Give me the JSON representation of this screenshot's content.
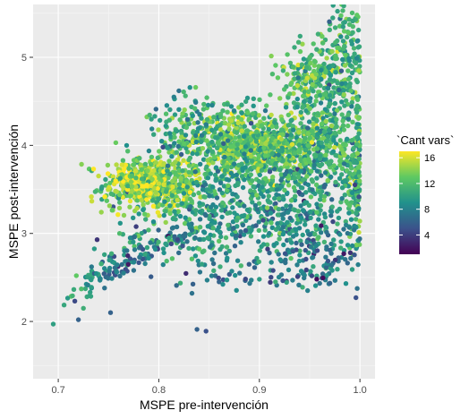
{
  "chart_data": {
    "type": "scatter",
    "xlabel": "MSPE pre-intervención",
    "ylabel": "MSPE post-intervención",
    "xlim": [
      0.675,
      1.015
    ],
    "ylim": [
      1.35,
      5.6
    ],
    "x_ticks": [
      0.7,
      0.8,
      0.9,
      1.0
    ],
    "x_tick_labels": [
      "0.7",
      "0.8",
      "0.9",
      "1.0"
    ],
    "y_ticks": [
      2,
      3,
      4,
      5
    ],
    "y_tick_labels": [
      "2",
      "3",
      "4",
      "5"
    ],
    "grid": true,
    "color": {
      "variable": "`Cant vars`",
      "range": [
        1,
        17
      ],
      "breaks": [
        4,
        8,
        12,
        16
      ],
      "break_labels": [
        "4",
        "8",
        "12",
        "16"
      ],
      "palette": [
        "#440154",
        "#3b528b",
        "#21918c",
        "#5ec962",
        "#fde725"
      ],
      "legend_position": "right"
    },
    "clusters": [
      {
        "x": 0.795,
        "y": 3.55,
        "sx": 0.025,
        "sy": 0.16,
        "n": 520,
        "c": 13.5
      },
      {
        "x": 0.78,
        "y": 3.6,
        "sx": 0.012,
        "sy": 0.08,
        "n": 160,
        "c": 15.5
      },
      {
        "x": 0.885,
        "y": 4.02,
        "sx": 0.035,
        "sy": 0.18,
        "n": 560,
        "c": 13
      },
      {
        "x": 0.94,
        "y": 3.95,
        "sx": 0.04,
        "sy": 0.2,
        "n": 420,
        "c": 12
      },
      {
        "x": 0.955,
        "y": 4.75,
        "sx": 0.02,
        "sy": 0.2,
        "n": 200,
        "c": 12
      },
      {
        "x": 0.985,
        "y": 5.05,
        "sx": 0.01,
        "sy": 0.25,
        "n": 120,
        "c": 11
      },
      {
        "x": 0.995,
        "y": 3.5,
        "sx": 0.005,
        "sy": 0.25,
        "n": 100,
        "c": 11
      },
      {
        "x": 0.93,
        "y": 3.2,
        "sx": 0.035,
        "sy": 0.25,
        "n": 240,
        "c": 9
      },
      {
        "x": 0.86,
        "y": 3.1,
        "sx": 0.03,
        "sy": 0.25,
        "n": 150,
        "c": 9
      },
      {
        "x": 0.84,
        "y": 4.25,
        "sx": 0.03,
        "sy": 0.2,
        "n": 110,
        "c": 10
      },
      {
        "x": 0.9,
        "y": 3.55,
        "sx": 0.045,
        "sy": 0.3,
        "n": 260,
        "c": 10
      },
      {
        "x": 0.96,
        "y": 2.8,
        "sx": 0.025,
        "sy": 0.18,
        "n": 90,
        "c": 8
      },
      {
        "x": 0.82,
        "y": 2.9,
        "sx": 0.03,
        "sy": 0.2,
        "n": 70,
        "c": 9
      },
      {
        "x": 0.97,
        "y": 4.3,
        "sx": 0.02,
        "sy": 0.25,
        "n": 160,
        "c": 11
      }
    ],
    "tails": [
      {
        "x0": 0.715,
        "y0": 2.25,
        "x1": 0.79,
        "y1": 3.15,
        "sx": 0.006,
        "sy": 0.06,
        "n": 60,
        "c": 9
      },
      {
        "x0": 0.74,
        "y0": 2.5,
        "x1": 0.84,
        "y1": 3.05,
        "sx": 0.006,
        "sy": 0.05,
        "n": 60,
        "c": 7
      },
      {
        "x0": 0.84,
        "y0": 2.5,
        "x1": 0.98,
        "y1": 2.5,
        "sx": 0.01,
        "sy": 0.06,
        "n": 40,
        "c": 7
      }
    ],
    "points": [
      {
        "x": 0.695,
        "y": 1.97,
        "c": 10
      },
      {
        "x": 0.72,
        "y": 2.02,
        "c": 6
      },
      {
        "x": 0.723,
        "y": 2.37,
        "c": 12
      },
      {
        "x": 0.718,
        "y": 2.52,
        "c": 13
      },
      {
        "x": 0.725,
        "y": 2.15,
        "c": 11
      },
      {
        "x": 0.752,
        "y": 2.1,
        "c": 6
      },
      {
        "x": 0.746,
        "y": 2.38,
        "c": 7
      },
      {
        "x": 0.838,
        "y": 1.91,
        "c": 6
      },
      {
        "x": 0.847,
        "y": 1.89,
        "c": 5
      },
      {
        "x": 0.996,
        "y": 2.27,
        "c": 5
      },
      {
        "x": 0.892,
        "y": 2.47,
        "c": 8
      },
      {
        "x": 0.833,
        "y": 2.32,
        "c": 7
      },
      {
        "x": 0.868,
        "y": 2.72,
        "c": 9
      },
      {
        "x": 0.916,
        "y": 2.45,
        "c": 11
      },
      {
        "x": 0.948,
        "y": 2.35,
        "c": 8
      },
      {
        "x": 0.972,
        "y": 2.64,
        "c": 7
      },
      {
        "x": 0.997,
        "y": 5.48,
        "c": 13
      },
      {
        "x": 0.993,
        "y": 5.35,
        "c": 12
      },
      {
        "x": 0.985,
        "y": 5.4,
        "c": 10
      },
      {
        "x": 0.82,
        "y": 4.62,
        "c": 7
      },
      {
        "x": 0.815,
        "y": 4.55,
        "c": 8
      },
      {
        "x": 0.796,
        "y": 4.33,
        "c": 10
      },
      {
        "x": 0.768,
        "y": 4.0,
        "c": 9
      },
      {
        "x": 0.761,
        "y": 3.0,
        "c": 12
      },
      {
        "x": 0.753,
        "y": 2.77,
        "c": 11
      },
      {
        "x": 0.765,
        "y": 2.55,
        "c": 8
      },
      {
        "x": 0.775,
        "y": 2.58,
        "c": 7
      },
      {
        "x": 0.79,
        "y": 2.72,
        "c": 9
      },
      {
        "x": 0.805,
        "y": 2.78,
        "c": 9
      },
      {
        "x": 0.81,
        "y": 2.95,
        "c": 10
      }
    ]
  }
}
